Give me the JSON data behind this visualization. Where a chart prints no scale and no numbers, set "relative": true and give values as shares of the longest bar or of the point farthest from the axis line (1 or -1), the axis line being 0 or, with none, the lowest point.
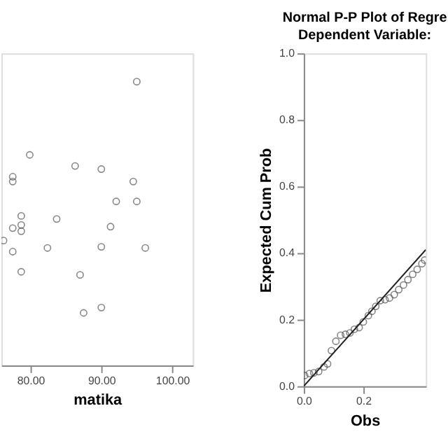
{
  "chart_data": [
    {
      "type": "scatter",
      "xlabel": "matika",
      "relative": true,
      "marker": "circle",
      "xlim": [
        75.9,
        102.9
      ],
      "xticks": [
        {
          "value": 80,
          "label": "80.00"
        },
        {
          "value": 90,
          "label": "90.00"
        },
        {
          "value": 100,
          "label": "100.00"
        }
      ],
      "series": [
        {
          "color": "#555555",
          "x": [
            95.0,
            79.9,
            86.3,
            90.0,
            77.5,
            77.5,
            94.5,
            92.1,
            95.0,
            78.7,
            83.7,
            78.7,
            77.5,
            78.7,
            91.3,
            76.2,
            77.5,
            82.4,
            90.0,
            96.2,
            78.7,
            87.0,
            90.0,
            87.5
          ],
          "values": [
            1,
            0.742,
            0.703,
            0.692,
            0.665,
            0.648,
            0.648,
            0.578,
            0.578,
            0.527,
            0.516,
            0.495,
            0.484,
            0.473,
            0.489,
            0.44,
            0.401,
            0.414,
            0.418,
            0.414,
            0.33,
            0.319,
            0.204,
            0.185
          ]
        }
      ]
    },
    {
      "type": "scatter",
      "title": "Normal P-P Plot of Regre",
      "subtitle": "Dependent Variable:",
      "xlabel": "Obs",
      "ylabel": "Expected Cum Prob",
      "xlim": [
        0,
        0.41
      ],
      "xticks": [
        {
          "value": 0,
          "label": "0.0"
        },
        {
          "value": 0.2,
          "label": "0.2"
        }
      ],
      "ylim": [
        0,
        1
      ],
      "yticks": [
        {
          "value": 0,
          "label": "0.0"
        },
        {
          "value": 0.2,
          "label": "0.2"
        },
        {
          "value": 0.4,
          "label": "0.4"
        },
        {
          "value": 0.6,
          "label": "0.6"
        },
        {
          "value": 0.8,
          "label": "0.8"
        },
        {
          "value": 1,
          "label": "1.0"
        }
      ],
      "series": [
        {
          "type": "scatter",
          "marker": "circle",
          "color": "#555555",
          "x": [
            0.003,
            0.019,
            0.034,
            0.05,
            0.068,
            0.08,
            0.093,
            0.108,
            0.124,
            0.14,
            0.155,
            0.17,
            0.186,
            0.2,
            0.217,
            0.229,
            0.242,
            0.257,
            0.273,
            0.288,
            0.304,
            0.319,
            0.335,
            0.35,
            0.366,
            0.381,
            0.397,
            0.406
          ],
          "values": [
            0.032,
            0.038,
            0.04,
            0.044,
            0.058,
            0.067,
            0.107,
            0.135,
            0.153,
            0.156,
            0.16,
            0.171,
            0.176,
            0.193,
            0.212,
            0.225,
            0.24,
            0.257,
            0.26,
            0.265,
            0.275,
            0.29,
            0.304,
            0.32,
            0.336,
            0.351,
            0.368,
            0.379
          ]
        },
        {
          "type": "line",
          "marker": "none",
          "color": "#222222",
          "x": [
            0,
            0.41
          ],
          "values": [
            0,
            0.41
          ]
        }
      ]
    }
  ]
}
